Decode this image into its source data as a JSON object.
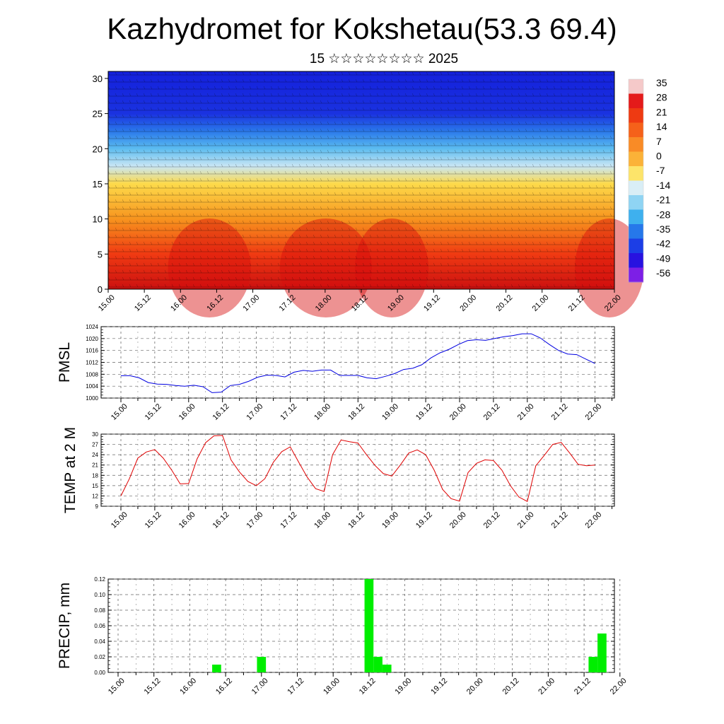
{
  "header": {
    "title": "Kazhydromet for Kokshetau(53.3 69.4)",
    "subtitle": "15 ☆☆☆☆☆☆☆☆ 2025"
  },
  "time_labels": [
    "15.00",
    "15.12",
    "16.00",
    "16.12",
    "17.00",
    "17.12",
    "18.00",
    "18.12",
    "19.00",
    "19.12",
    "20.00",
    "20.12",
    "21.00",
    "21.12",
    "22.00"
  ],
  "chart_data": [
    {
      "type": "heatmap",
      "description_of_field": "vertical cross-section of temperature with wind barbs",
      "xlabel": "",
      "ylabel": "",
      "x_ticks": [
        "15.00",
        "15.12",
        "16.00",
        "16.12",
        "17.00",
        "17.12",
        "18.00",
        "18.12",
        "19.00",
        "19.12",
        "20.00",
        "20.12",
        "21.00",
        "21.12",
        "22.00"
      ],
      "y_ticks": [
        0,
        5,
        10,
        15,
        20,
        25,
        30
      ],
      "ylim": [
        0,
        31
      ],
      "colorbar": {
        "labels": [
          "35",
          "28",
          "21",
          "14",
          "7",
          "0",
          "-7",
          "-14",
          "-21",
          "-28",
          "-35",
          "-42",
          "-49",
          "-56"
        ],
        "colors": [
          "#f5c9c9",
          "#e41a1a",
          "#ee3a12",
          "#f5611a",
          "#f98b26",
          "#fbb238",
          "#fde46a",
          "#d9eef6",
          "#8fd4f3",
          "#3eb0ee",
          "#2678ea",
          "#1c3ee6",
          "#2812e0",
          "#7d1fe6"
        ]
      },
      "profile_levels": [
        0,
        5,
        10,
        15,
        17.5,
        20,
        22.5,
        25,
        31
      ],
      "profile_colors": [
        "#cc1010",
        "#f03a12",
        "#f7941e",
        "#fdda4a",
        "#c9e6f4",
        "#5cbcf0",
        "#2a78ea",
        "#1a32e0",
        "#1420dc"
      ]
    },
    {
      "type": "line",
      "ylabel": "PMSL",
      "ylim": [
        1000,
        1024
      ],
      "y_ticks": [
        1000,
        1004,
        1008,
        1012,
        1016,
        1020,
        1024
      ],
      "x_ticks": [
        "15.00",
        "15.12",
        "16.00",
        "16.12",
        "17.00",
        "17.12",
        "18.00",
        "18.12",
        "19.00",
        "19.12",
        "20.00",
        "20.12",
        "21.00",
        "21.12",
        "22.00"
      ],
      "grid": true,
      "line_color": "#0000e0",
      "values": [
        1007.5,
        1007.5,
        1006.8,
        1005.2,
        1004.7,
        1004.6,
        1004.2,
        1004.0,
        1004.3,
        1003.8,
        1001.8,
        1002.0,
        1004.2,
        1004.6,
        1005.6,
        1007.0,
        1007.7,
        1007.6,
        1007.1,
        1008.7,
        1009.3,
        1009.0,
        1009.4,
        1009.4,
        1007.6,
        1007.6,
        1007.6,
        1006.8,
        1006.5,
        1007.3,
        1008.2,
        1009.6,
        1010.0,
        1011.2,
        1013.5,
        1015.2,
        1016.4,
        1018.0,
        1019.3,
        1019.6,
        1019.4,
        1020.0,
        1020.6,
        1021.0,
        1021.6,
        1021.6,
        1020.2,
        1018.0,
        1016.0,
        1014.8,
        1014.6,
        1013.1,
        1011.6
      ]
    },
    {
      "type": "line",
      "ylabel": "TEMP at 2 M",
      "ylim": [
        9,
        30
      ],
      "y_ticks": [
        9,
        12,
        15,
        18,
        21,
        24,
        27,
        30
      ],
      "x_ticks": [
        "15.00",
        "15.12",
        "16.00",
        "16.12",
        "17.00",
        "17.12",
        "18.00",
        "18.12",
        "19.00",
        "19.12",
        "20.00",
        "20.12",
        "21.00",
        "21.12",
        "22.00"
      ],
      "grid": true,
      "line_color": "#e00000",
      "values": [
        12.0,
        17.0,
        23.0,
        24.8,
        25.5,
        23.0,
        19.5,
        15.5,
        15.6,
        22.8,
        27.5,
        29.5,
        29.6,
        22.5,
        19.0,
        16.2,
        15.0,
        17.0,
        21.8,
        24.9,
        26.3,
        21.8,
        17.5,
        14.1,
        13.3,
        24.0,
        28.3,
        27.8,
        27.4,
        24.0,
        20.9,
        18.5,
        17.8,
        21.0,
        24.5,
        25.4,
        24.0,
        19.5,
        13.9,
        11.2,
        10.5,
        18.8,
        21.5,
        22.5,
        22.3,
        19.5,
        15.0,
        11.7,
        10.4,
        20.8,
        23.8,
        27.0,
        27.6,
        24.5,
        21.2,
        20.8,
        21.0
      ]
    },
    {
      "type": "bar",
      "ylabel": "PRECIP, mm",
      "ylim": [
        0,
        0.12
      ],
      "y_ticks": [
        "0.00",
        "0.02",
        "0.04",
        "0.06",
        "0.08",
        "0.10",
        "0.12"
      ],
      "x_ticks": [
        "15.00",
        "15.12",
        "16.00",
        "16.12",
        "17.00",
        "17.12",
        "18.00",
        "18.12",
        "19.00",
        "19.12",
        "20.00",
        "20.12",
        "21.00",
        "21.12",
        "22.00"
      ],
      "grid": true,
      "bar_color": "#00ee00",
      "bars": [
        {
          "time_hours": 33,
          "value": 0.01
        },
        {
          "time_hours": 48,
          "value": 0.02
        },
        {
          "time_hours": 84,
          "value": 0.12
        },
        {
          "time_hours": 87,
          "value": 0.02
        },
        {
          "time_hours": 90,
          "value": 0.01
        },
        {
          "time_hours": 159,
          "value": 0.02
        },
        {
          "time_hours": 162,
          "value": 0.05
        }
      ]
    }
  ]
}
